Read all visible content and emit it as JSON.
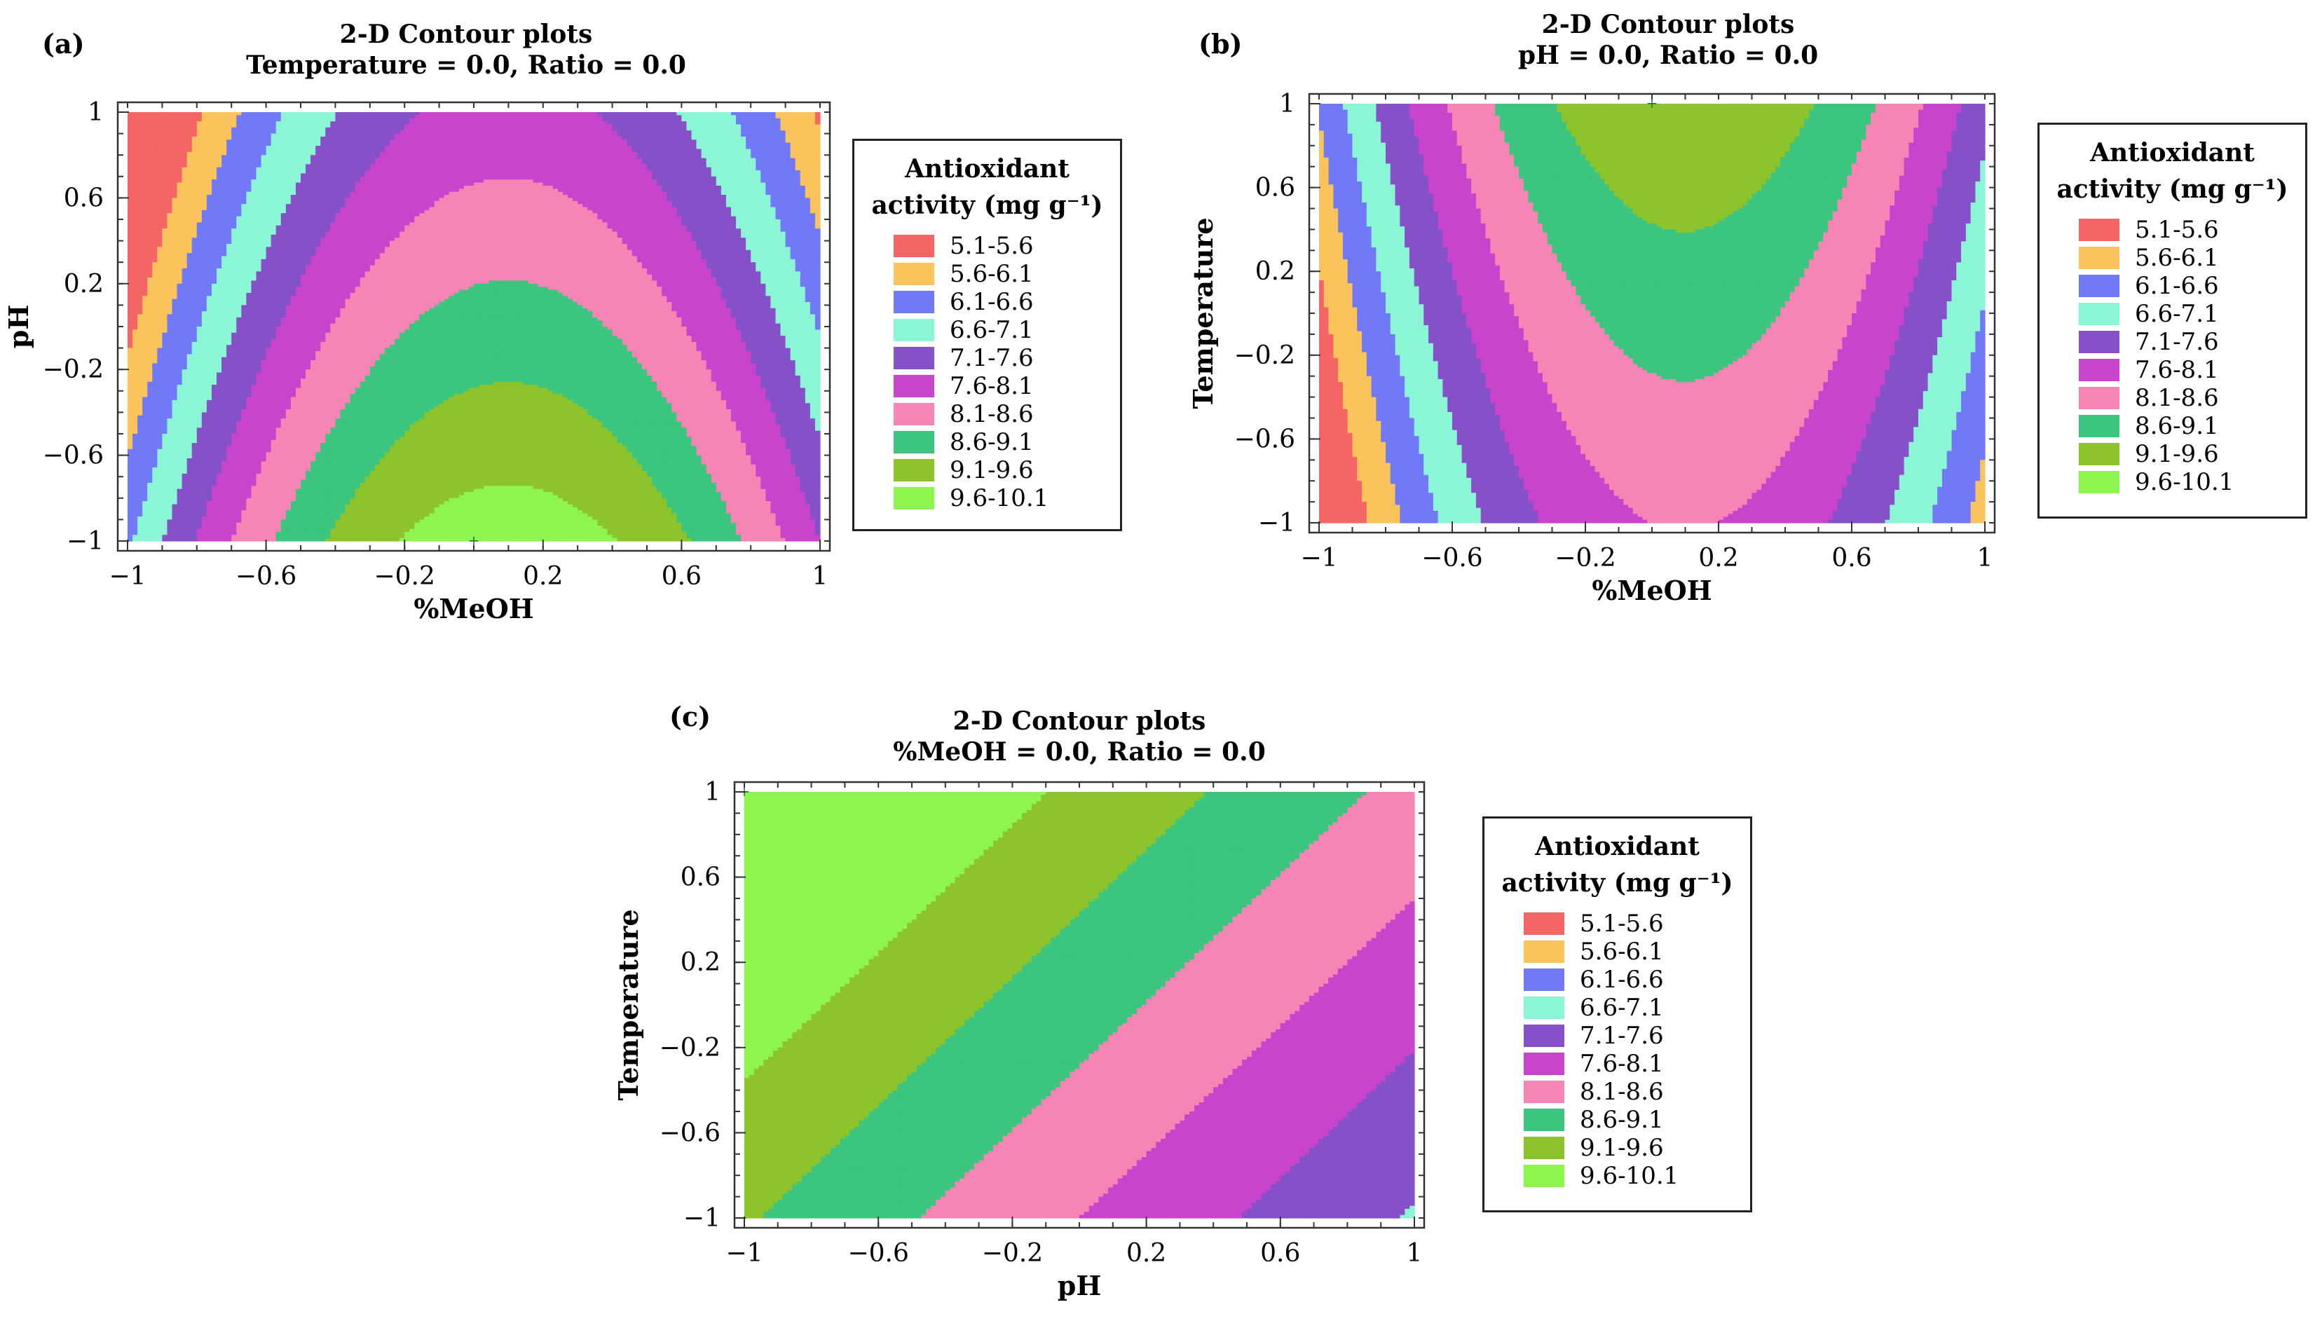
{
  "legend": {
    "title_line1": "Antioxidant",
    "title_line2": "activity (mg g⁻¹)",
    "items": [
      {
        "label": "5.1-5.6",
        "color": "#f56565"
      },
      {
        "label": "5.6-6.1",
        "color": "#fac35c"
      },
      {
        "label": "6.1-6.6",
        "color": "#7179f6"
      },
      {
        "label": "6.6-7.1",
        "color": "#8bf6d6"
      },
      {
        "label": "7.1-7.6",
        "color": "#8550c8"
      },
      {
        "label": "7.6-8.1",
        "color": "#c944cc"
      },
      {
        "label": "8.1-8.6",
        "color": "#f684b4"
      },
      {
        "label": "8.6-9.1",
        "color": "#3cc57e"
      },
      {
        "label": "9.1-9.6",
        "color": "#8ec42b"
      },
      {
        "label": "9.6-10.1",
        "color": "#8df54e"
      }
    ]
  },
  "chart_data": [
    {
      "panel_label": "(a)",
      "type": "contour",
      "title": "2-D Contour plots",
      "subtitle": "Temperature = 0.0, Ratio = 0.0",
      "xlabel": "%MeOH",
      "ylabel": "pH",
      "xlim": [
        -1,
        1
      ],
      "ylim": [
        -1,
        1
      ],
      "xticks": [
        "−1",
        "−0.6",
        "−0.2",
        "0.2",
        "0.6",
        "1"
      ],
      "yticks": [
        "1",
        "0.6",
        "0.2",
        "−0.2",
        "−0.6",
        "−1"
      ],
      "optimum": {
        "x": 0.0,
        "y": -1.0
      },
      "model": {
        "c": 8.8,
        "x": 0.55,
        "y": -1.05,
        "xx": -2.8,
        "yy": 0.0,
        "xy": 0.0
      },
      "levels": [
        5.1,
        5.6,
        6.1,
        6.6,
        7.1,
        7.6,
        8.1,
        8.6,
        9.1,
        9.6,
        10.1
      ]
    },
    {
      "panel_label": "(b)",
      "type": "contour",
      "title": "2-D Contour plots",
      "subtitle": "pH = 0.0, Ratio = 0.0",
      "xlabel": "%MeOH",
      "ylabel": "Temperature",
      "xlim": [
        -1,
        1
      ],
      "ylim": [
        -1,
        1
      ],
      "xticks": [
        "−1",
        "−0.6",
        "−0.2",
        "0.2",
        "0.6",
        "1"
      ],
      "yticks": [
        "1",
        "0.6",
        "0.2",
        "−0.2",
        "−0.6",
        "−1"
      ],
      "optimum": {
        "x": 0.0,
        "y": 1.0
      },
      "model": {
        "c": 8.8,
        "x": 0.55,
        "y": 0.7,
        "xx": -2.8,
        "yy": 0.0,
        "xy": 0.0
      },
      "levels": [
        5.1,
        5.6,
        6.1,
        6.6,
        7.1,
        7.6,
        8.1,
        8.6,
        9.1,
        9.6,
        10.1
      ]
    },
    {
      "panel_label": "(c)",
      "type": "contour",
      "title": "2-D Contour plots",
      "subtitle": "%MeOH = 0.0, Ratio = 0.0",
      "xlabel": "pH",
      "ylabel": "Temperature",
      "xlim": [
        -1,
        1
      ],
      "ylim": [
        -1,
        1
      ],
      "xticks": [
        "−1",
        "−0.6",
        "−0.2",
        "0.2",
        "0.6",
        "1"
      ],
      "yticks": [
        "1",
        "0.6",
        "0.2",
        "−0.2",
        "−0.6",
        "−1"
      ],
      "optimum": {
        "x": -1.0,
        "y": 1.0
      },
      "model": {
        "c": 8.8,
        "x": -1.05,
        "y": 0.7,
        "xx": 0.0,
        "yy": 0.0,
        "xy": 0.0
      },
      "levels": [
        5.1,
        5.6,
        6.1,
        6.6,
        7.1,
        7.6,
        8.1,
        8.6,
        9.1,
        9.6,
        10.1
      ]
    }
  ]
}
